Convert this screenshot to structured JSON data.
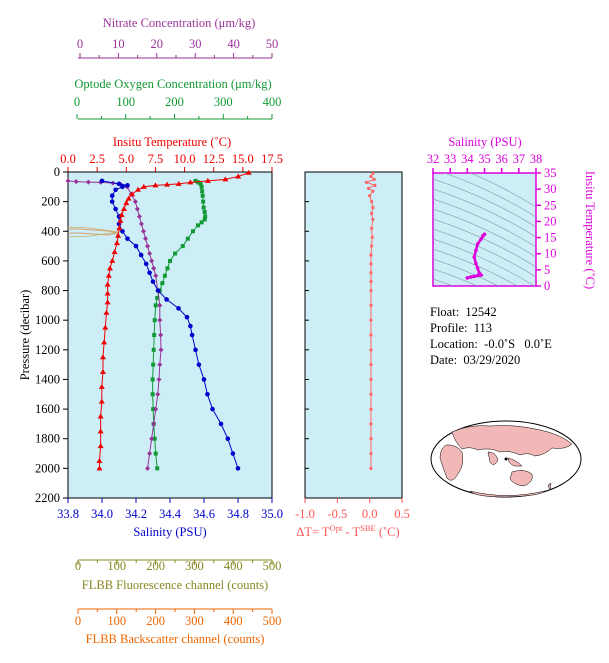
{
  "chart_data": [
    {
      "type": "line",
      "panel": "main-profile",
      "ylabel": "Pressure (decibar)",
      "ylim": [
        2200,
        0
      ],
      "yticks": [
        "0",
        "200",
        "400",
        "600",
        "800",
        "1000",
        "1200",
        "1400",
        "1600",
        "1800",
        "2000",
        "2200"
      ],
      "axes": {
        "nitrate": {
          "label": "Nitrate Concentration (μm/kg)",
          "range": [
            0,
            50
          ],
          "ticks": [
            "0",
            "10",
            "20",
            "30",
            "40",
            "50"
          ],
          "color": "#993399"
        },
        "oxygen": {
          "label": "Optode Oxygen Concentration (μm/kg)",
          "range": [
            0,
            400
          ],
          "ticks": [
            "0",
            "100",
            "200",
            "300",
            "400"
          ],
          "color": "#119933"
        },
        "temperature": {
          "label": "Insitu Temperature (˚C)",
          "range": [
            0,
            17.5
          ],
          "ticks": [
            "0.0",
            "2.5",
            "5.0",
            "7.5",
            "10.0",
            "12.5",
            "15.0",
            "17.5"
          ],
          "color": "#ee0000"
        },
        "salinity": {
          "label": "Salinity (PSU)",
          "range": [
            33.8,
            35.0
          ],
          "ticks": [
            "33.8",
            "34.0",
            "34.2",
            "34.4",
            "34.6",
            "34.8",
            "35.0"
          ],
          "color": "#0000cc"
        },
        "fluorescence": {
          "label": "FLBB Fluorescence channel (counts)",
          "range": [
            0,
            500
          ],
          "ticks": [
            "0",
            "100",
            "200",
            "300",
            "400",
            "500"
          ],
          "color": "#888822"
        },
        "backscatter": {
          "label": "FLBB Backscatter channel (counts)",
          "range": [
            0,
            500
          ],
          "ticks": [
            "0",
            "100",
            "200",
            "300",
            "400",
            "500"
          ],
          "color": "#ee6600"
        }
      },
      "series": [
        {
          "key": "temperature",
          "color": "#ee0000",
          "points": [
            [
              15.5,
              5
            ],
            [
              14.6,
              30
            ],
            [
              13.5,
              50
            ],
            [
              12.0,
              60
            ],
            [
              10.5,
              70
            ],
            [
              9.5,
              80
            ],
            [
              8.5,
              85
            ],
            [
              7.5,
              90
            ],
            [
              6.5,
              100
            ],
            [
              6.0,
              120
            ],
            [
              5.5,
              150
            ],
            [
              5.2,
              180
            ],
            [
              5.0,
              210
            ],
            [
              4.8,
              250
            ],
            [
              4.6,
              290
            ],
            [
              4.5,
              330
            ],
            [
              4.4,
              380
            ],
            [
              4.3,
              430
            ],
            [
              4.2,
              480
            ],
            [
              4.0,
              540
            ],
            [
              3.8,
              600
            ],
            [
              3.6,
              650
            ],
            [
              3.5,
              700
            ],
            [
              3.4,
              760
            ],
            [
              3.4,
              820
            ],
            [
              3.4,
              880
            ],
            [
              3.3,
              950
            ],
            [
              3.2,
              1050
            ],
            [
              3.1,
              1150
            ],
            [
              3.0,
              1250
            ],
            [
              3.0,
              1350
            ],
            [
              2.9,
              1450
            ],
            [
              2.9,
              1550
            ],
            [
              2.8,
              1650
            ],
            [
              2.8,
              1750
            ],
            [
              2.8,
              1850
            ],
            [
              2.7,
              1950
            ],
            [
              2.7,
              2000
            ]
          ]
        },
        {
          "key": "salinity",
          "color": "#0000cc",
          "points": [
            [
              34.0,
              60
            ],
            [
              34.1,
              80
            ],
            [
              34.15,
              90
            ],
            [
              34.12,
              100
            ],
            [
              34.08,
              120
            ],
            [
              34.06,
              160
            ],
            [
              34.06,
              200
            ],
            [
              34.08,
              250
            ],
            [
              34.1,
              300
            ],
            [
              34.1,
              350
            ],
            [
              34.12,
              400
            ],
            [
              34.15,
              450
            ],
            [
              34.2,
              500
            ],
            [
              34.23,
              560
            ],
            [
              34.26,
              620
            ],
            [
              34.28,
              680
            ],
            [
              34.3,
              740
            ],
            [
              34.33,
              800
            ],
            [
              34.38,
              860
            ],
            [
              34.45,
              920
            ],
            [
              34.5,
              980
            ],
            [
              34.52,
              1040
            ],
            [
              34.53,
              1100
            ],
            [
              34.55,
              1200
            ],
            [
              34.57,
              1300
            ],
            [
              34.6,
              1400
            ],
            [
              34.62,
              1500
            ],
            [
              34.65,
              1600
            ],
            [
              34.7,
              1700
            ],
            [
              34.74,
              1800
            ],
            [
              34.77,
              1900
            ],
            [
              34.8,
              2000
            ]
          ]
        },
        {
          "key": "nitrate",
          "color": "#993399",
          "points": [
            [
              0,
              60
            ],
            [
              2,
              65
            ],
            [
              5,
              68
            ],
            [
              8,
              70
            ],
            [
              11,
              75
            ],
            [
              13,
              85
            ],
            [
              14.5,
              100
            ],
            [
              15.5,
              150
            ],
            [
              16.5,
              200
            ],
            [
              17,
              250
            ],
            [
              17.5,
              300
            ],
            [
              18,
              350
            ],
            [
              18.5,
              400
            ],
            [
              19,
              450
            ],
            [
              19.5,
              500
            ],
            [
              20,
              550
            ],
            [
              20.5,
              600
            ],
            [
              21,
              650
            ],
            [
              21.5,
              700
            ],
            [
              22,
              800
            ],
            [
              22.5,
              900
            ],
            [
              22.5,
              1000
            ],
            [
              22.7,
              1100
            ],
            [
              22.8,
              1200
            ],
            [
              22.5,
              1300
            ],
            [
              22.3,
              1400
            ],
            [
              22,
              1500
            ],
            [
              21.5,
              1600
            ],
            [
              21,
              1700
            ],
            [
              20.5,
              1800
            ],
            [
              20,
              1900
            ],
            [
              19.5,
              2000
            ]
          ]
        },
        {
          "key": "oxygen",
          "color": "#119933",
          "points": [
            [
              250,
              60
            ],
            [
              255,
              70
            ],
            [
              260,
              80
            ],
            [
              262,
              100
            ],
            [
              263,
              130
            ],
            [
              264,
              160
            ],
            [
              265,
              200
            ],
            [
              266,
              240
            ],
            [
              268,
              270
            ],
            [
              269,
              300
            ],
            [
              268,
              320
            ],
            [
              262,
              340
            ],
            [
              255,
              360
            ],
            [
              245,
              400
            ],
            [
              235,
              450
            ],
            [
              225,
              500
            ],
            [
              210,
              550
            ],
            [
              200,
              600
            ],
            [
              195,
              650
            ],
            [
              190,
              700
            ],
            [
              185,
              750
            ],
            [
              180,
              800
            ],
            [
              175,
              850
            ],
            [
              172,
              900
            ],
            [
              170,
              1000
            ],
            [
              169,
              1100
            ],
            [
              168,
              1200
            ],
            [
              167,
              1300
            ],
            [
              166,
              1400
            ],
            [
              166,
              1500
            ],
            [
              167,
              1600
            ],
            [
              168,
              1700
            ],
            [
              170,
              1800
            ],
            [
              172,
              1900
            ],
            [
              175,
              2000
            ]
          ]
        }
      ]
    },
    {
      "type": "line",
      "panel": "delta-t",
      "xlabel": "ΔT= T",
      "xlabel_sup1": "Opt",
      "xlabel_mid": " - T",
      "xlabel_sup2": "SBE",
      "xlabel_end": " (˚C)",
      "xlim": [
        -1.0,
        0.5
      ],
      "xticks": [
        "-1.0",
        "-0.5",
        "0.0",
        "0.5"
      ],
      "color": "#ff6666",
      "points": [
        [
          0.05,
          10
        ],
        [
          0.02,
          30
        ],
        [
          0.07,
          50
        ],
        [
          -0.05,
          70
        ],
        [
          0.08,
          90
        ],
        [
          -0.02,
          110
        ],
        [
          0.05,
          130
        ],
        [
          0.0,
          160
        ],
        [
          0.03,
          200
        ],
        [
          0.05,
          240
        ],
        [
          0.03,
          280
        ],
        [
          0.05,
          320
        ],
        [
          0.03,
          380
        ],
        [
          0.04,
          440
        ],
        [
          0.03,
          500
        ],
        [
          0.02,
          560
        ],
        [
          0.02,
          620
        ],
        [
          0.02,
          680
        ],
        [
          0.02,
          740
        ],
        [
          0.02,
          800
        ],
        [
          0.02,
          900
        ],
        [
          0.02,
          1000
        ],
        [
          0.02,
          1100
        ],
        [
          0.02,
          1200
        ],
        [
          0.02,
          1300
        ],
        [
          0.02,
          1400
        ],
        [
          0.02,
          1500
        ],
        [
          0.02,
          1600
        ],
        [
          0.02,
          1700
        ],
        [
          0.02,
          1800
        ],
        [
          0.02,
          1900
        ],
        [
          0.02,
          2000
        ]
      ]
    },
    {
      "type": "scatter",
      "panel": "t-s-diagram",
      "title": "Salinity (PSU)",
      "ylabel": "Insitu Temperature (˚C)",
      "xlim": [
        32,
        38
      ],
      "ylim": [
        0,
        35
      ],
      "xticks": [
        "32",
        "33",
        "34",
        "35",
        "36",
        "37",
        "38"
      ],
      "yticks": [
        "0",
        "5",
        "10",
        "15",
        "20",
        "25",
        "30",
        "35"
      ],
      "color": "#dd00dd",
      "points": [
        [
          34.0,
          2.5
        ],
        [
          34.2,
          2.8
        ],
        [
          34.4,
          3.0
        ],
        [
          34.6,
          3.2
        ],
        [
          34.8,
          3.4
        ],
        [
          34.7,
          4.0
        ],
        [
          34.6,
          5.5
        ],
        [
          34.5,
          7.0
        ],
        [
          34.4,
          9.0
        ],
        [
          34.5,
          11.0
        ],
        [
          34.6,
          13.0
        ],
        [
          34.8,
          14.5
        ],
        [
          35.0,
          16.0
        ],
        [
          34.9,
          15.5
        ]
      ]
    }
  ],
  "info": {
    "float": "Float:  12542",
    "profile": "Profile:  113",
    "location": "Location:  -0.0˚S   0.0˚E",
    "date": "Date:  03/29/2020"
  }
}
